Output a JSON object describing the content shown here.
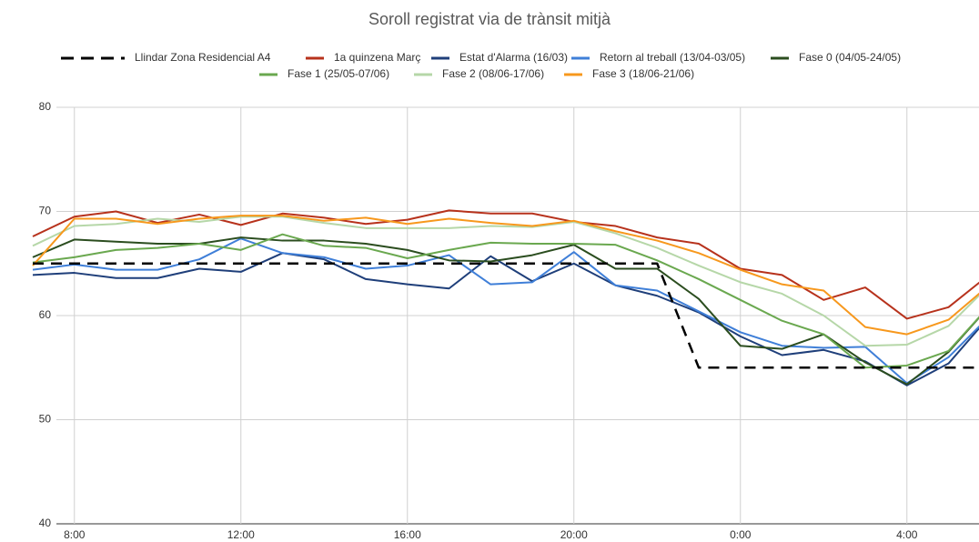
{
  "chart_data": {
    "type": "line",
    "title": "Soroll registrat via de trànsit mitjà",
    "categories": [
      null,
      "8:00",
      null,
      null,
      null,
      "12:00",
      null,
      null,
      null,
      "16:00",
      null,
      null,
      null,
      "20:00",
      null,
      null,
      null,
      "0:00",
      null,
      null,
      null,
      "4:00",
      null,
      null
    ],
    "ylim": [
      40,
      80
    ],
    "yticks": [
      40,
      50,
      60,
      70,
      80
    ],
    "grid": true,
    "legend": "top",
    "series": [
      {
        "name": "Llindar Zona Residencial A4",
        "color": "#000000",
        "dashed": true,
        "values": [
          65,
          65,
          65,
          65,
          65,
          65,
          65,
          65,
          65,
          65,
          65,
          65,
          65,
          65,
          65,
          65,
          55,
          55,
          55,
          55,
          55,
          55,
          55,
          55
        ]
      },
      {
        "name": "1a quinzena Març",
        "color": "#b7321c",
        "values": [
          67.6,
          69.5,
          70,
          68.9,
          69.7,
          68.7,
          69.8,
          69.4,
          68.8,
          69.2,
          70.1,
          69.8,
          69.8,
          69,
          68.6,
          67.5,
          66.9,
          64.5,
          63.9,
          61.5,
          62.7,
          59.7,
          60.8,
          64
        ]
      },
      {
        "name": "Estat d'Alarma (16/03)",
        "color": "#1f3f7a",
        "values": [
          63.9,
          64.1,
          63.6,
          63.6,
          64.5,
          64.2,
          66,
          65.4,
          63.5,
          63,
          62.6,
          65.7,
          63.3,
          65,
          62.9,
          61.9,
          60.3,
          58,
          56.2,
          56.7,
          55.6,
          53.3,
          55.4,
          60
        ]
      },
      {
        "name": "Retorn al treball (13/04-03/05)",
        "color": "#3f7fd8",
        "values": [
          64.4,
          64.9,
          64.4,
          64.4,
          65.4,
          67.4,
          66,
          65.6,
          64.5,
          64.8,
          65.8,
          63,
          63.2,
          66.1,
          62.9,
          62.4,
          60.4,
          58.4,
          57.1,
          56.9,
          57,
          53.5,
          56,
          60
        ]
      },
      {
        "name": "Fase 0 (04/05-24/05)",
        "color": "#2b4d1f",
        "values": [
          65.6,
          67.3,
          67.1,
          66.9,
          66.9,
          67.5,
          67.2,
          67.2,
          66.9,
          66.3,
          65.3,
          65.2,
          65.8,
          66.8,
          64.5,
          64.5,
          61.6,
          57.1,
          56.8,
          58.2,
          55.5,
          53.4,
          56.5,
          61
        ]
      },
      {
        "name": "Fase 1 (25/05-07/06)",
        "color": "#6aa84f",
        "values": [
          65.1,
          65.6,
          66.3,
          66.5,
          66.9,
          66.3,
          67.8,
          66.7,
          66.5,
          65.5,
          66.3,
          67,
          66.9,
          66.9,
          66.8,
          65.3,
          63.5,
          61.5,
          59.5,
          58.2,
          55,
          55.2,
          56.6,
          61
        ]
      },
      {
        "name": "Fase 2 (08/06-17/06)",
        "color": "#b6d7a8",
        "values": [
          66.7,
          68.6,
          68.8,
          69.3,
          69,
          69.5,
          69.5,
          68.9,
          68.4,
          68.4,
          68.4,
          68.6,
          68.5,
          69,
          67.9,
          66.5,
          64.8,
          63.2,
          62.1,
          60,
          57.1,
          57.2,
          59,
          63
        ]
      },
      {
        "name": "Fase 3 (18/06-21/06)",
        "color": "#f7981d",
        "values": [
          64.8,
          69.3,
          69.3,
          68.8,
          69.3,
          69.6,
          69.6,
          69.1,
          69.4,
          68.8,
          69.3,
          68.9,
          68.6,
          69.1,
          68.1,
          67.2,
          66,
          64.4,
          63,
          62.4,
          58.9,
          58.2,
          59.6,
          63
        ]
      }
    ]
  }
}
